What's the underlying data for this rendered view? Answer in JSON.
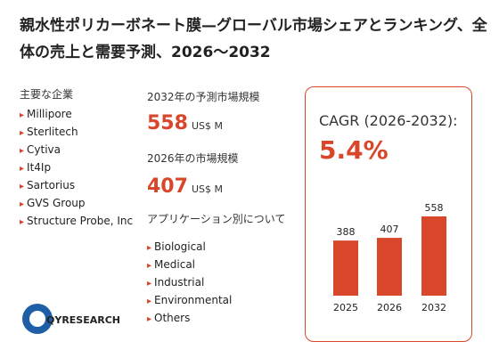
{
  "header": {
    "title": "親水性ポリカーボネート膜—グローバル市場シェアとランキング、全体の売上と需要予測、2026～2032"
  },
  "players": {
    "heading": "主要な企業",
    "items": [
      "Millipore",
      "Sterlitech",
      "Cytiva",
      "It4Ip",
      "Sartorius",
      "GVS Group",
      "Structure Probe, Inc"
    ]
  },
  "market": {
    "forecast_label": "2032年の予測市場規模",
    "forecast_value": 558,
    "forecast_unit": "US$ M",
    "current_label": "2026年の市場規模",
    "current_value": 407,
    "current_unit": "US$ M"
  },
  "applications": {
    "heading": "アプリケーション別について",
    "items": [
      "Biological",
      "Medical",
      "Industrial",
      "Environmental",
      "Others"
    ]
  },
  "logo": {
    "text": "QYRESEARCH"
  },
  "chart_data": {
    "type": "bar",
    "title": "CAGR (2026-2032):",
    "subtitle": "5.4%",
    "categories": [
      "2025",
      "2026",
      "2032"
    ],
    "values": [
      388,
      407,
      558
    ],
    "color": "#d9472b"
  }
}
